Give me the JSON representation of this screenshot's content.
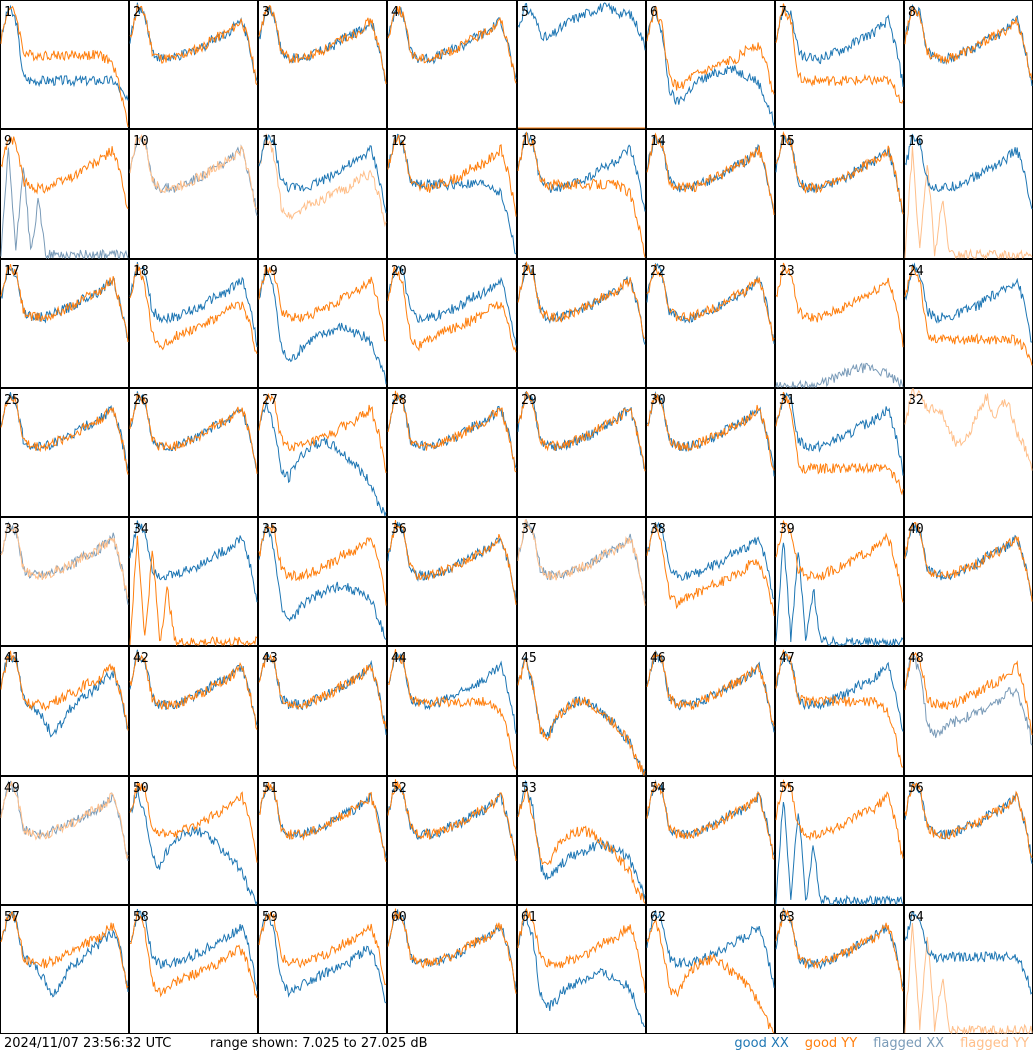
{
  "footer": {
    "timestamp": "2024/11/07 23:56:32 UTC",
    "range": "range shown: 7.025 to 27.025 dB"
  },
  "legend": [
    {
      "label": "good XX",
      "color": "#1f77b4"
    },
    {
      "label": "good YY",
      "color": "#ff7f0e"
    },
    {
      "label": "flagged XX",
      "color": "#7a9bb8"
    },
    {
      "label": "flagged YY",
      "color": "#ffbf8a"
    }
  ],
  "chart_data": {
    "type": "line",
    "layout": "small-multiples 8x8",
    "unit": "dB",
    "ylim": [
      7.025,
      27.025
    ],
    "panel_labels": [
      "1",
      "2",
      "3",
      "4",
      "5",
      "6",
      "7",
      "8",
      "9",
      "10",
      "11",
      "12",
      "13",
      "14",
      "15",
      "16",
      "17",
      "18",
      "19",
      "20",
      "21",
      "22",
      "23",
      "24",
      "25",
      "26",
      "27",
      "28",
      "29",
      "30",
      "31",
      "32",
      "33",
      "34",
      "35",
      "36",
      "37",
      "38",
      "39",
      "40",
      "41",
      "42",
      "43",
      "44",
      "45",
      "46",
      "47",
      "48",
      "49",
      "50",
      "51",
      "52",
      "53",
      "54",
      "55",
      "56",
      "57",
      "58",
      "59",
      "60",
      "61",
      "62",
      "63",
      "64"
    ],
    "series_keys": [
      "good XX",
      "good YY",
      "flagged XX",
      "flagged YY"
    ],
    "profiles": {
      "normal": [
        21,
        26,
        25,
        19,
        18,
        18,
        18,
        18.5,
        19,
        19.5,
        20,
        21,
        21.5,
        22,
        23,
        24,
        20,
        14
      ],
      "dropEnd": [
        21,
        26,
        25,
        19,
        18.5,
        18.5,
        18.5,
        18.5,
        18.5,
        18.5,
        18.5,
        18.5,
        18.5,
        18.5,
        18,
        17,
        13,
        7.5
      ],
      "deep": [
        21,
        26,
        22,
        13,
        11,
        12,
        13.5,
        14.5,
        15,
        15.5,
        16,
        16.5,
        16,
        15.5,
        15,
        14,
        11,
        8
      ],
      "sag": [
        21,
        26,
        23,
        15,
        13.5,
        14,
        15,
        15.5,
        16,
        16.5,
        17,
        17.5,
        18,
        19,
        20,
        20,
        17,
        12
      ],
      "low": [
        21,
        26,
        24,
        15,
        14.5,
        14.5,
        14.5,
        14.5,
        14.5,
        14.5,
        14.5,
        14.5,
        14.5,
        14.5,
        14.5,
        14.5,
        13,
        11
      ],
      "dip": [
        21,
        26,
        25,
        19,
        18,
        17,
        15,
        13,
        15,
        17,
        18,
        19,
        20,
        21,
        22,
        23,
        20,
        14
      ],
      "hump": [
        21,
        25,
        21,
        14,
        13,
        15.5,
        17,
        18,
        18.5,
        18.5,
        18,
        17,
        16,
        15,
        13.5,
        12,
        9,
        7.2
      ],
      "flat": [
        7.025,
        7.025,
        7.025,
        7.025,
        7.025,
        7.025,
        7.025,
        7.025,
        7.025,
        7.025,
        7.025,
        7.025,
        7.025,
        7.025,
        7.025,
        7.025,
        7.025,
        7.025
      ],
      "spikes": [
        7.5,
        24,
        8,
        22,
        7.5,
        16,
        7.5,
        7.5,
        7.5,
        7.5,
        7.5,
        7.5,
        7.5,
        7.5,
        7.5,
        7.5,
        7.5,
        7.5
      ],
      "tail": [
        7.2,
        7.2,
        7.2,
        7.2,
        7.2,
        7.2,
        7.5,
        8,
        8.5,
        9,
        9.5,
        10,
        10,
        10,
        9.5,
        9,
        8,
        7.2
      ],
      "top": [
        23,
        26,
        25,
        22,
        21,
        22,
        23,
        24,
        24.5,
        25,
        25.5,
        26,
        26,
        25.5,
        25,
        25,
        23,
        20
      ],
      "ramp": [
        21,
        26,
        24,
        14,
        13,
        14,
        15,
        16.5,
        18,
        19,
        19.5,
        20,
        20.5,
        21,
        21.5,
        22,
        18,
        12
      ],
      "late": [
        21,
        26,
        25,
        20,
        19,
        19,
        19,
        19,
        19,
        19,
        19,
        19,
        19,
        19,
        19,
        19,
        17,
        13
      ],
      "noisy": [
        21,
        27,
        26,
        24,
        24,
        23,
        20,
        18,
        19,
        21,
        24,
        26,
        22,
        25,
        24,
        20,
        18,
        14
      ]
    },
    "panels": [
      {
        "XX": "low",
        "YY": "dropEnd"
      },
      {
        "XX": "normal",
        "YY": "normal"
      },
      {
        "XX": "normal",
        "YY": "normal"
      },
      {
        "XX": "normal",
        "YY": "normal"
      },
      {
        "XX": "top",
        "YY": "flat",
        "flaggedYY": "flat"
      },
      {
        "XX": "deep",
        "YY": "sag"
      },
      {
        "XX": "normal",
        "YY": "low"
      },
      {
        "XX": "normal",
        "YY": "normal"
      },
      {
        "YY": "normal",
        "flaggedXX": "spikes"
      },
      {
        "flaggedXX": "normal",
        "flaggedYY": "normal"
      },
      {
        "XX": "normal",
        "flaggedYY": "sag"
      },
      {
        "XX": "dropEnd",
        "YY": "normal"
      },
      {
        "XX": "normal",
        "YY": "dropEnd"
      },
      {
        "XX": "normal",
        "YY": "normal"
      },
      {
        "XX": "normal",
        "YY": "normal"
      },
      {
        "XX": "normal",
        "flaggedYY": "spikes"
      },
      {
        "XX": "normal",
        "YY": "normal"
      },
      {
        "XX": "normal",
        "YY": "sag"
      },
      {
        "XX": "deep",
        "YY": "normal"
      },
      {
        "XX": "normal",
        "YY": "sag"
      },
      {
        "XX": "normal",
        "YY": "normal"
      },
      {
        "XX": "normal",
        "YY": "normal"
      },
      {
        "YY": "normal",
        "flaggedXX": "tail"
      },
      {
        "XX": "normal",
        "YY": "low"
      },
      {
        "XX": "normal",
        "YY": "normal"
      },
      {
        "XX": "normal",
        "YY": "normal"
      },
      {
        "XX": "hump",
        "YY": "normal"
      },
      {
        "XX": "normal",
        "YY": "normal"
      },
      {
        "XX": "normal",
        "YY": "normal"
      },
      {
        "XX": "normal",
        "YY": "normal"
      },
      {
        "XX": "normal",
        "YY": "low"
      },
      {
        "flaggedYY": "noisy"
      },
      {
        "flaggedXX": "normal",
        "flaggedYY": "normal"
      },
      {
        "XX": "normal",
        "YY": "spikes"
      },
      {
        "XX": "deep",
        "YY": "normal"
      },
      {
        "XX": "normal",
        "YY": "normal"
      },
      {
        "flaggedXX": "normal",
        "flaggedYY": "normal"
      },
      {
        "XX": "normal",
        "YY": "sag"
      },
      {
        "XX": "spikes",
        "YY": "normal"
      },
      {
        "XX": "normal",
        "YY": "normal"
      },
      {
        "XX": "dip",
        "YY": "normal"
      },
      {
        "XX": "normal",
        "YY": "normal"
      },
      {
        "XX": "normal",
        "YY": "normal"
      },
      {
        "XX": "normal",
        "YY": "dropEnd"
      },
      {
        "XX": "hump",
        "YY": "hump"
      },
      {
        "XX": "normal",
        "YY": "normal"
      },
      {
        "XX": "normal",
        "YY": "dropEnd"
      },
      {
        "YY": "normal",
        "flaggedXX": "sag"
      },
      {
        "flaggedXX": "normal",
        "flaggedYY": "normal"
      },
      {
        "XX": "hump",
        "YY": "normal"
      },
      {
        "XX": "normal",
        "YY": "normal"
      },
      {
        "XX": "normal",
        "YY": "normal"
      },
      {
        "XX": "deep",
        "YY": "hump"
      },
      {
        "XX": "normal",
        "YY": "normal"
      },
      {
        "XX": "spikes",
        "YY": "normal"
      },
      {
        "XX": "normal",
        "YY": "normal"
      },
      {
        "XX": "dip",
        "YY": "normal"
      },
      {
        "XX": "normal",
        "YY": "sag"
      },
      {
        "XX": "sag",
        "YY": "normal"
      },
      {
        "XX": "normal",
        "YY": "normal"
      },
      {
        "XX": "deep",
        "YY": "normal"
      },
      {
        "XX": "normal",
        "YY": "hump"
      },
      {
        "XX": "normal",
        "YY": "normal"
      },
      {
        "XX": "late",
        "flaggedYY": "spikes"
      }
    ]
  }
}
